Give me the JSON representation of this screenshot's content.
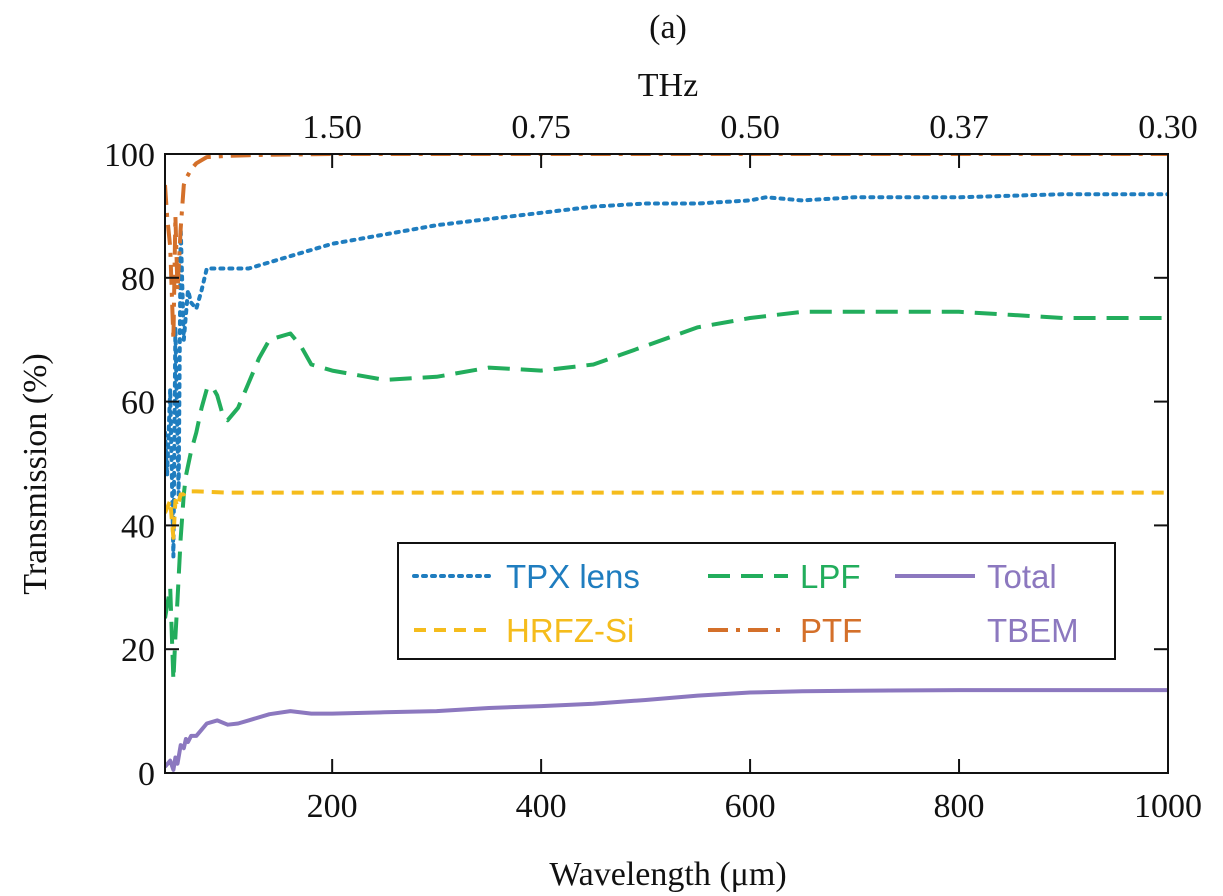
{
  "chart_data": {
    "type": "line",
    "panel_label": "(a)",
    "xlabel": "Wavelength (μm)",
    "x2label": "THz",
    "ylabel": "Transmission (%)",
    "xlim": [
      40,
      1000
    ],
    "ylim": [
      0,
      100
    ],
    "x_ticks": [
      200,
      400,
      600,
      800,
      1000
    ],
    "y_ticks": [
      0,
      20,
      40,
      60,
      80,
      100
    ],
    "x2_ticks": [
      {
        "at": 200,
        "label": "1.50"
      },
      {
        "at": 400,
        "label": "0.75"
      },
      {
        "at": 600,
        "label": "0.50"
      },
      {
        "at": 800,
        "label": "0.37"
      },
      {
        "at": 1000,
        "label": "0.30"
      }
    ],
    "grid": false,
    "legend_position": "lower-right",
    "series": [
      {
        "name": "TPX lens",
        "color": "#1f7dbf",
        "dash": "dotted",
        "x": [
          40,
          42,
          45,
          48,
          50,
          53,
          55,
          58,
          62,
          65,
          70,
          75,
          80,
          90,
          100,
          120,
          140,
          160,
          200,
          250,
          300,
          350,
          400,
          450,
          500,
          550,
          600,
          615,
          650,
          700,
          800,
          900,
          1000
        ],
        "y": [
          55,
          48,
          62,
          35,
          72,
          45,
          88,
          70,
          78,
          76,
          75,
          78,
          81.5,
          81.5,
          81.5,
          81.5,
          82.5,
          83.5,
          85.5,
          87,
          88.5,
          89.5,
          90.5,
          91.5,
          92,
          92,
          92.5,
          93,
          92.5,
          93,
          93,
          93.5,
          93.5
        ]
      },
      {
        "name": "LPF",
        "color": "#22ad5c",
        "dash": "dashed",
        "x": [
          40,
          45,
          48,
          50,
          52,
          55,
          58,
          60,
          65,
          70,
          75,
          80,
          85,
          90,
          95,
          100,
          110,
          120,
          130,
          140,
          160,
          170,
          180,
          200,
          250,
          300,
          350,
          400,
          450,
          500,
          550,
          600,
          650,
          700,
          800,
          850,
          900,
          950,
          1000
        ],
        "y": [
          25,
          30,
          15,
          22,
          28,
          38,
          45,
          48,
          52,
          55,
          59,
          62,
          62.5,
          61,
          58,
          57,
          59,
          63,
          67,
          70,
          71,
          69,
          66,
          65,
          63.5,
          64,
          65.5,
          65,
          66,
          69,
          72,
          73.5,
          74.5,
          74.5,
          74.5,
          74,
          73.5,
          73.5,
          73.5
        ]
      },
      {
        "name": "Total TBEM",
        "color": "#8c78bf",
        "dash": "solid",
        "x": [
          40,
          45,
          48,
          50,
          52,
          55,
          58,
          60,
          62,
          65,
          70,
          75,
          80,
          90,
          100,
          110,
          120,
          140,
          160,
          180,
          200,
          250,
          300,
          350,
          400,
          450,
          500,
          550,
          600,
          650,
          700,
          800,
          900,
          1000
        ],
        "y": [
          1,
          2,
          0.5,
          2.5,
          1.5,
          4.5,
          4,
          5.5,
          5,
          6,
          6,
          7,
          8,
          8.5,
          7.8,
          8,
          8.5,
          9.5,
          10,
          9.6,
          9.6,
          9.8,
          10,
          10.5,
          10.8,
          11.2,
          11.8,
          12.5,
          13,
          13.2,
          13.3,
          13.4,
          13.4,
          13.4
        ]
      },
      {
        "name": "HRFZ-Si",
        "color": "#f5bc1c",
        "dash": "short-dashed",
        "x": [
          40,
          45,
          48,
          50,
          52,
          55,
          58,
          60,
          65,
          70,
          100,
          200,
          400,
          600,
          800,
          1000
        ],
        "y": [
          42,
          44,
          38,
          44,
          43,
          45,
          45,
          45.5,
          45.5,
          45.5,
          45.3,
          45.3,
          45.3,
          45.3,
          45.3,
          45.3
        ]
      },
      {
        "name": "PTF",
        "color": "#d4702a",
        "dash": "dash-dot",
        "x": [
          40,
          42,
          45,
          48,
          50,
          52,
          55,
          58,
          60,
          65,
          70,
          75,
          80,
          90,
          100,
          120,
          150,
          200,
          300,
          400,
          500,
          600,
          700,
          800,
          900,
          1000
        ],
        "y": [
          95,
          90,
          85,
          70,
          90,
          78,
          88,
          95,
          96,
          97.5,
          98.5,
          99,
          99.5,
          99.6,
          99.7,
          99.8,
          99.9,
          100,
          100,
          100,
          100,
          100,
          100,
          100,
          100,
          100
        ]
      }
    ]
  },
  "legend_items": [
    {
      "label": "TPX lens",
      "color": "#1f7dbf",
      "dash": "dotted",
      "col": 0,
      "row": 0
    },
    {
      "label": "LPF",
      "color": "#22ad5c",
      "dash": "dashed",
      "col": 1,
      "row": 0
    },
    {
      "label": "Total",
      "label2": "TBEM",
      "color": "#8c78bf",
      "dash": "solid",
      "col": 2,
      "row": 0
    },
    {
      "label": "HRFZ-Si",
      "color": "#f5bc1c",
      "dash": "short-dashed",
      "col": 0,
      "row": 1
    },
    {
      "label": "PTF",
      "color": "#d4702a",
      "dash": "dash-dot",
      "col": 1,
      "row": 1
    }
  ]
}
